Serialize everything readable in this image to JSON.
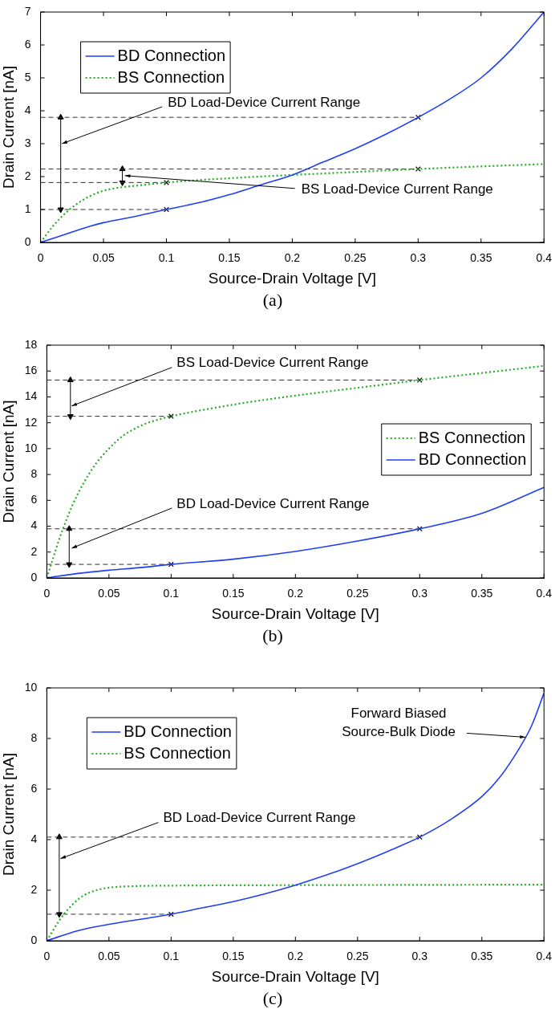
{
  "chart_data": [
    {
      "type": "line",
      "title": "(a)",
      "xlabel": "Source-Drain Voltage [V]",
      "ylabel": "Drain Current [nA]",
      "xlim": [
        0,
        0.4
      ],
      "xticks": [
        0,
        0.05,
        0.1,
        0.15,
        0.2,
        0.25,
        0.3,
        0.35,
        0.4
      ],
      "ylim": [
        0,
        7
      ],
      "yticks": [
        0,
        1,
        2,
        3,
        4,
        5,
        6,
        7
      ],
      "legend": "top left",
      "annotations": [
        {
          "text": "BD Load-Device Current Range",
          "x": 0.017,
          "y": 3.0
        },
        {
          "text": "BS Load-Device Current Range",
          "x": 0.067,
          "y": 2.03
        }
      ],
      "series": [
        {
          "name": "BD Connection",
          "color": "#1f3ff5",
          "line_style": "solid",
          "x": [
            0,
            0.02,
            0.04,
            0.05,
            0.07,
            0.1,
            0.125,
            0.15,
            0.175,
            0.2,
            0.225,
            0.25,
            0.275,
            0.3,
            0.325,
            0.35,
            0.375,
            0.4
          ],
          "values": [
            0,
            0.25,
            0.5,
            0.6,
            0.75,
            1.0,
            1.2,
            1.45,
            1.75,
            2.05,
            2.45,
            2.85,
            3.3,
            3.8,
            4.35,
            5.0,
            5.9,
            7.0
          ]
        },
        {
          "name": "BS Connection",
          "color": "#22b022",
          "line_style": "dotted",
          "x": [
            0,
            0.01,
            0.02,
            0.03,
            0.04,
            0.05,
            0.06,
            0.08,
            0.1,
            0.15,
            0.2,
            0.25,
            0.3,
            0.35,
            0.4
          ],
          "values": [
            0,
            0.5,
            0.9,
            1.2,
            1.42,
            1.57,
            1.65,
            1.74,
            1.82,
            1.95,
            2.05,
            2.14,
            2.23,
            2.31,
            2.38
          ]
        },
        {
          "type": "line",
          "color": "#333333",
          "line_style": "dashed",
          "marker": "none",
          "x": [
            0,
            0.3
          ],
          "values": [
            3.8,
            3.8
          ]
        },
        {
          "type": "line",
          "color": "#333333",
          "line_style": "dashed",
          "marker": "none",
          "x": [
            0,
            0.1
          ],
          "values": [
            1.0,
            1.0
          ]
        },
        {
          "type": "line",
          "color": "#333333",
          "line_style": "dashed",
          "marker": "none",
          "x": [
            0,
            0.3
          ],
          "values": [
            2.23,
            2.23
          ]
        },
        {
          "type": "line",
          "color": "#333333",
          "line_style": "dashed",
          "marker": "none",
          "x": [
            0,
            0.1
          ],
          "values": [
            1.82,
            1.82
          ]
        },
        {
          "type": "scatter",
          "color": "#000000",
          "marker": "cross",
          "x": [
            0.1,
            0.3,
            0.1,
            0.3
          ],
          "values": [
            1.0,
            3.8,
            1.82,
            2.23
          ]
        },
        {
          "type": "line",
          "color": "#000000",
          "line_style": "solid",
          "marker": "triangle",
          "x": [
            0.016,
            0.016
          ],
          "values": [
            1.0,
            3.8
          ]
        },
        {
          "type": "line",
          "color": "#000000",
          "line_style": "solid",
          "marker": "triangle",
          "x": [
            0.065,
            0.065
          ],
          "values": [
            1.82,
            2.23
          ]
        }
      ]
    },
    {
      "type": "line",
      "title": "(b)",
      "xlabel": "Source-Drain Voltage [V]",
      "ylabel": "Drain Current [nA]",
      "xlim": [
        0,
        0.4
      ],
      "xticks": [
        0,
        0.05,
        0.1,
        0.15,
        0.2,
        0.25,
        0.3,
        0.35,
        0.4
      ],
      "ylim": [
        0,
        18
      ],
      "yticks": [
        0,
        2,
        4,
        6,
        8,
        10,
        12,
        14,
        16,
        18
      ],
      "legend": "right",
      "annotations": [
        {
          "text": "BS Load-Device Current Range",
          "x": 0.02,
          "y": 13.3
        },
        {
          "text": "BD Load-Device Current Range",
          "x": 0.02,
          "y": 2.3
        }
      ],
      "series": [
        {
          "name": "BS Connection",
          "color": "#22b022",
          "line_style": "dotted",
          "x": [
            0,
            0.005,
            0.01,
            0.015,
            0.02,
            0.03,
            0.04,
            0.05,
            0.06,
            0.07,
            0.08,
            0.09,
            0.1,
            0.15,
            0.2,
            0.25,
            0.3,
            0.35,
            0.4
          ],
          "values": [
            0,
            1.5,
            3.0,
            4.3,
            5.5,
            7.4,
            8.9,
            10.0,
            10.9,
            11.5,
            11.95,
            12.25,
            12.5,
            13.4,
            14.1,
            14.7,
            15.3,
            15.85,
            16.4
          ]
        },
        {
          "name": "BD Connection",
          "color": "#1f3ff5",
          "line_style": "solid",
          "x": [
            0,
            0.025,
            0.05,
            0.075,
            0.1,
            0.15,
            0.2,
            0.25,
            0.3,
            0.35,
            0.4
          ],
          "values": [
            0,
            0.35,
            0.6,
            0.8,
            1.05,
            1.45,
            2.05,
            2.85,
            3.8,
            5.0,
            7.0
          ]
        },
        {
          "type": "line",
          "color": "#333333",
          "line_style": "dashed",
          "marker": "none",
          "x": [
            0,
            0.3
          ],
          "values": [
            15.3,
            15.3
          ]
        },
        {
          "type": "line",
          "color": "#333333",
          "line_style": "dashed",
          "marker": "none",
          "x": [
            0,
            0.1
          ],
          "values": [
            12.5,
            12.5
          ]
        },
        {
          "type": "line",
          "color": "#333333",
          "line_style": "dashed",
          "marker": "none",
          "x": [
            0,
            0.3
          ],
          "values": [
            3.8,
            3.8
          ]
        },
        {
          "type": "line",
          "color": "#333333",
          "line_style": "dashed",
          "marker": "none",
          "x": [
            0,
            0.1
          ],
          "values": [
            1.05,
            1.05
          ]
        },
        {
          "type": "scatter",
          "color": "#000000",
          "marker": "cross",
          "x": [
            0.1,
            0.3,
            0.1,
            0.3
          ],
          "values": [
            12.5,
            15.3,
            1.05,
            3.8
          ]
        },
        {
          "type": "line",
          "color": "#000000",
          "line_style": "solid",
          "marker": "triangle",
          "x": [
            0.019,
            0.019
          ],
          "values": [
            12.5,
            15.3
          ]
        },
        {
          "type": "line",
          "color": "#000000",
          "line_style": "solid",
          "marker": "triangle",
          "x": [
            0.018,
            0.018
          ],
          "values": [
            1.05,
            3.8
          ]
        }
      ]
    },
    {
      "type": "line",
      "title": "(c)",
      "xlabel": "Source-Drain Voltage [V]",
      "ylabel": "Drain Current [nA]",
      "xlim": [
        0,
        0.4
      ],
      "xticks": [
        0,
        0.05,
        0.1,
        0.15,
        0.2,
        0.25,
        0.3,
        0.35,
        0.4
      ],
      "ylim": [
        0,
        10
      ],
      "yticks": [
        0,
        2,
        4,
        6,
        8,
        10
      ],
      "legend": "top left",
      "annotations": [
        {
          "text": "BD Load-Device Current Range",
          "x": 0.011,
          "y": 3.25
        },
        {
          "text": "Forward Biased\nSource-Bulk Diode",
          "x": 0.385,
          "y": 8.05
        }
      ],
      "series": [
        {
          "name": "BD Connection",
          "color": "#1f3ff5",
          "line_style": "solid",
          "x": [
            0,
            0.025,
            0.05,
            0.075,
            0.1,
            0.125,
            0.15,
            0.175,
            0.2,
            0.225,
            0.25,
            0.275,
            0.3,
            0.325,
            0.35,
            0.365,
            0.38,
            0.39,
            0.4
          ],
          "values": [
            0,
            0.4,
            0.65,
            0.85,
            1.05,
            1.3,
            1.55,
            1.85,
            2.2,
            2.6,
            3.05,
            3.55,
            4.1,
            4.8,
            5.7,
            6.5,
            7.6,
            8.5,
            9.8
          ]
        },
        {
          "name": "BS Connection",
          "color": "#22b022",
          "line_style": "dotted",
          "x": [
            0,
            0.01,
            0.02,
            0.03,
            0.04,
            0.05,
            0.07,
            0.1,
            0.2,
            0.3,
            0.4
          ],
          "values": [
            0,
            0.8,
            1.4,
            1.8,
            2.0,
            2.1,
            2.16,
            2.18,
            2.2,
            2.21,
            2.22
          ]
        },
        {
          "type": "line",
          "color": "#333333",
          "line_style": "dashed",
          "marker": "none",
          "x": [
            0,
            0.3
          ],
          "values": [
            4.1,
            4.1
          ]
        },
        {
          "type": "line",
          "color": "#333333",
          "line_style": "dashed",
          "marker": "none",
          "x": [
            0,
            0.1
          ],
          "values": [
            1.05,
            1.05
          ]
        },
        {
          "type": "scatter",
          "color": "#000000",
          "marker": "cross",
          "x": [
            0.1,
            0.3
          ],
          "values": [
            1.05,
            4.1
          ]
        },
        {
          "type": "line",
          "color": "#000000",
          "line_style": "solid",
          "marker": "triangle",
          "x": [
            0.01,
            0.01
          ],
          "values": [
            1.05,
            4.1
          ]
        }
      ]
    }
  ]
}
